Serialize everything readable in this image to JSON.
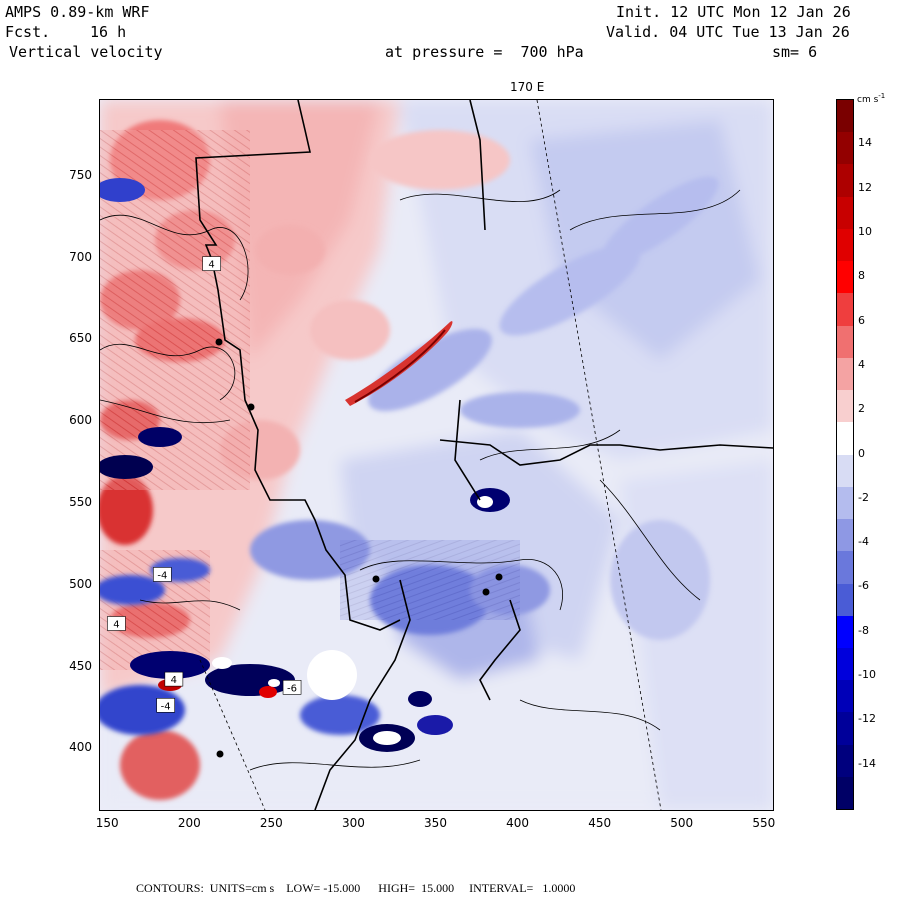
{
  "header": {
    "model": "AMPS 0.89-km WRF",
    "fcst_label": "Fcst.",
    "fcst_value": "16 h",
    "field": "Vertical velocity",
    "init": "Init. 12 UTC Mon 12 Jan 26",
    "valid": "Valid. 04 UTC Tue 13 Jan 26",
    "pressure": "at pressure =  700 hPa",
    "smooth": "sm= 6"
  },
  "map": {
    "meridian_label": "170 E",
    "x_ticks": [
      "150",
      "200",
      "250",
      "300",
      "350",
      "400",
      "450",
      "500",
      "550"
    ],
    "y_ticks": [
      "750",
      "700",
      "650",
      "600",
      "550",
      "500",
      "450",
      "400"
    ],
    "x_range": [
      145,
      555
    ],
    "y_range": [
      363,
      797
    ],
    "colors": {
      "pos": "#e8413c",
      "neg": "#2b3fd8",
      "zero": "#ffffff"
    },
    "features": [
      {
        "type": "updraft_band",
        "x": [
          300,
          350
        ],
        "y": [
          605,
          640
        ],
        "value": 6
      },
      {
        "type": "downdraft_cell",
        "x": [
          310,
          335
        ],
        "y": [
          395,
          415
        ],
        "value": -14
      },
      {
        "type": "downdraft_cell",
        "x": [
          160,
          200
        ],
        "y": [
          560,
          580
        ],
        "value": -12
      },
      {
        "type": "downdraft_cell",
        "x": [
          185,
          210
        ],
        "y": [
          585,
          605
        ],
        "value": -12
      },
      {
        "type": "downdraft_cell",
        "x": [
          160,
          215
        ],
        "y": [
          435,
          460
        ],
        "value": -14
      },
      {
        "type": "downdraft_cell",
        "x": [
          220,
          270
        ],
        "y": [
          425,
          455
        ],
        "value": -12
      },
      {
        "type": "updraft_cell",
        "x": [
          200,
          230
        ],
        "y": [
          440,
          460
        ],
        "value": 10
      }
    ],
    "box_labels": [
      {
        "text": "4",
        "x": 213,
        "y": 697
      },
      {
        "text": "-4",
        "x": 183,
        "y": 507
      },
      {
        "text": "4",
        "x": 155,
        "y": 477
      },
      {
        "text": "4",
        "x": 190,
        "y": 443
      },
      {
        "text": "-4",
        "x": 185,
        "y": 427
      },
      {
        "text": "-6",
        "x": 262,
        "y": 438
      }
    ]
  },
  "colorbar": {
    "units": "cm s",
    "units_exp": "-1",
    "labels": [
      "14",
      "12",
      "10",
      "8",
      "6",
      "4",
      "2",
      "0",
      "-2",
      "-4",
      "-6",
      "-8",
      "-10",
      "-12",
      "-14"
    ],
    "colors": [
      "#7a0000",
      "#930000",
      "#ad0000",
      "#c80000",
      "#e00000",
      "#ff0000",
      "#ef3e3e",
      "#f07070",
      "#f4a3a3",
      "#f8cfcf",
      "#ffffff",
      "#d8dcf4",
      "#b4bcee",
      "#8e98e4",
      "#6a78dc",
      "#4a5cd6",
      "#0000ff",
      "#0000dc",
      "#0000b8",
      "#00009a",
      "#00007e",
      "#000066"
    ]
  },
  "footer": "CONTOURS:  UNITS=cm s    LOW= -15.000      HIGH=  15.000     INTERVAL=   1.0000"
}
